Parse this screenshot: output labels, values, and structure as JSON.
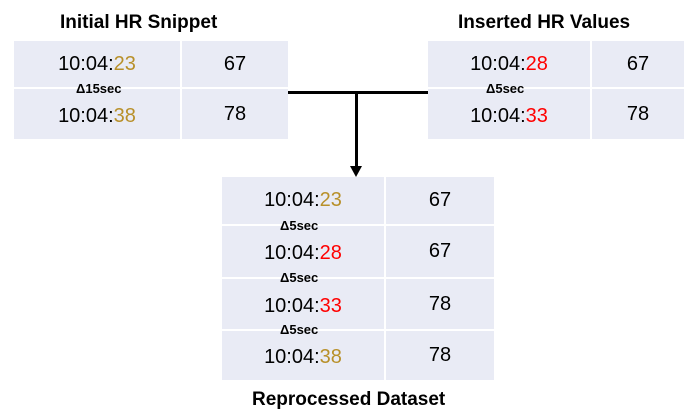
{
  "colors": {
    "original": "#b8902a",
    "inserted": "#ff0000",
    "cell_bg": "#e9ebf5"
  },
  "initial": {
    "title": "Initial HR Snippet",
    "rows": [
      {
        "time_prefix": "10:04:",
        "time_sec": "23",
        "hr": "67"
      },
      {
        "time_prefix": "10:04:",
        "time_sec": "38",
        "hr": "78"
      }
    ],
    "delta": "Δ15sec"
  },
  "inserted": {
    "title": "Inserted HR Values",
    "rows": [
      {
        "time_prefix": "10:04:",
        "time_sec": "28",
        "hr": "67"
      },
      {
        "time_prefix": "10:04:",
        "time_sec": "33",
        "hr": "78"
      }
    ],
    "delta": "Δ5sec"
  },
  "reprocessed": {
    "title": "Reprocessed Dataset",
    "rows": [
      {
        "time_prefix": "10:04:",
        "time_sec": "23",
        "hr": "67"
      },
      {
        "time_prefix": "10:04:",
        "time_sec": "28",
        "hr": "67"
      },
      {
        "time_prefix": "10:04:",
        "time_sec": "33",
        "hr": "78"
      },
      {
        "time_prefix": "10:04:",
        "time_sec": "38",
        "hr": "78"
      }
    ],
    "deltas": [
      "Δ5sec",
      "Δ5sec",
      "Δ5sec"
    ]
  }
}
